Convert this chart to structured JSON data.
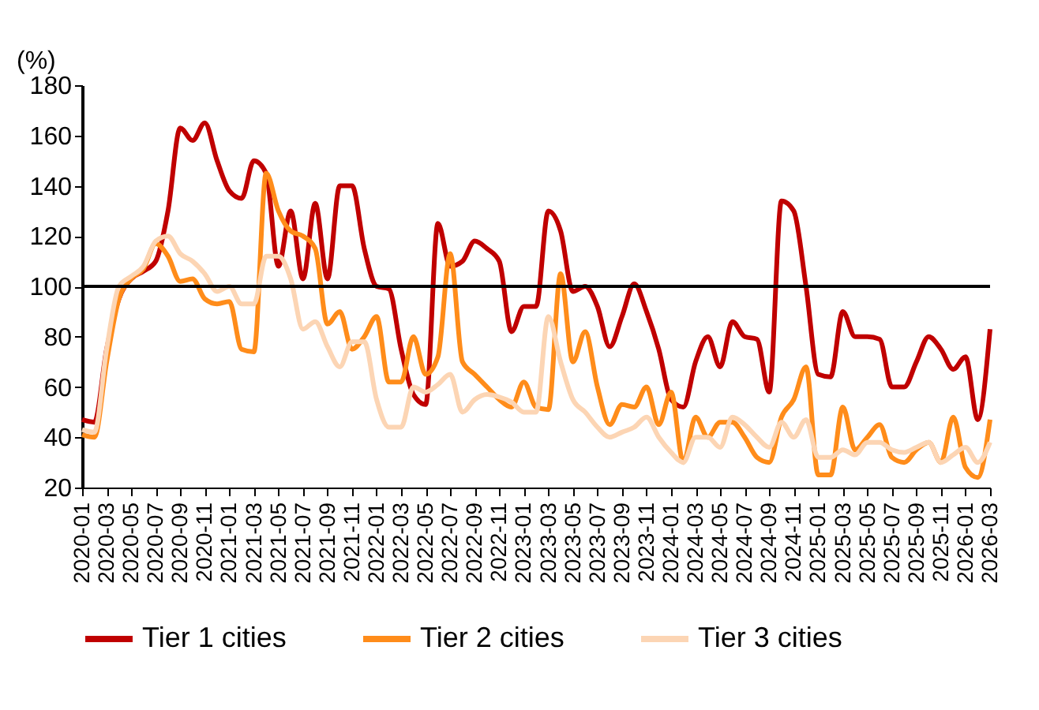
{
  "chart_data": {
    "type": "line",
    "ylabel": "(%)",
    "categories": [
      "2020-01",
      null,
      "2020-03",
      null,
      "2020-05",
      null,
      "2020-07",
      null,
      "2020-09",
      null,
      "2020-11",
      null,
      "2021-01",
      null,
      "2021-03",
      null,
      "2021-05",
      null,
      "2021-07",
      null,
      "2021-09",
      null,
      "2021-11",
      null,
      "2022-01",
      null,
      "2022-03",
      null,
      "2022-05",
      null,
      "2022-07",
      null,
      "2022-09",
      null,
      "2022-11",
      null,
      "2023-01",
      null,
      "2023-03",
      null,
      "2023-05",
      null,
      "2023-07",
      null,
      "2023-09",
      null,
      "2023-11",
      null,
      "2024-01",
      null,
      "2024-03",
      null,
      "2024-05",
      null,
      "2024-07",
      null,
      "2024-09",
      null,
      "2024-11",
      null,
      "2025-01",
      null,
      "2025-03",
      null,
      "2025-05",
      null,
      "2025-07",
      null,
      "2025-09",
      null,
      "2025-11",
      null,
      "2026-01",
      null,
      "2026-03"
    ],
    "series": [
      {
        "name": "Tier 1 cities",
        "color": "#c00000",
        "values": [
          47,
          46,
          75,
          95,
          103,
          106,
          110,
          130,
          163,
          158,
          165,
          150,
          138,
          135,
          150,
          145,
          108,
          130,
          103,
          133,
          103,
          140,
          140,
          115,
          100,
          99,
          75,
          57,
          53,
          125,
          108,
          110,
          118,
          115,
          110,
          82,
          92,
          92,
          130,
          122,
          98,
          100,
          92,
          76,
          88,
          101,
          90,
          75,
          55,
          52,
          70,
          80,
          68,
          86,
          80,
          79,
          58,
          134,
          130,
          100,
          65,
          64,
          90,
          80,
          80,
          79,
          60,
          60,
          70,
          80,
          75,
          67,
          72,
          47,
          83
        ]
      },
      {
        "name": "Tier 2 cities",
        "color": "#ff8c1a",
        "values": [
          41,
          40,
          70,
          95,
          103,
          107,
          117,
          112,
          102,
          103,
          95,
          93,
          94,
          75,
          74,
          145,
          130,
          122,
          120,
          115,
          85,
          90,
          75,
          80,
          88,
          62,
          62,
          80,
          65,
          72,
          113,
          70,
          65,
          60,
          55,
          52,
          62,
          52,
          51,
          105,
          70,
          82,
          60,
          45,
          53,
          52,
          60,
          45,
          58,
          30,
          48,
          40,
          46,
          46,
          40,
          32,
          30,
          48,
          55,
          68,
          25,
          25,
          52,
          35,
          40,
          45,
          32,
          30,
          35,
          38,
          30,
          48,
          28,
          24,
          47
        ]
      },
      {
        "name": "Tier 3 cities",
        "color": "#fcd5b4",
        "values": [
          43,
          42,
          75,
          100,
          104,
          108,
          118,
          120,
          113,
          110,
          105,
          98,
          100,
          93,
          93,
          112,
          112,
          103,
          83,
          86,
          76,
          68,
          78,
          78,
          55,
          44,
          44,
          60,
          58,
          61,
          65,
          50,
          55,
          57,
          56,
          54,
          50,
          50,
          88,
          70,
          55,
          50,
          44,
          40,
          42,
          44,
          48,
          40,
          34,
          30,
          40,
          40,
          36,
          48,
          45,
          40,
          36,
          46,
          40,
          47,
          32,
          32,
          35,
          33,
          38,
          38,
          35,
          34,
          36,
          38,
          30,
          33,
          36,
          30,
          38
        ]
      }
    ],
    "ylim": [
      20,
      180
    ],
    "yticks": [
      20,
      40,
      60,
      80,
      100,
      120,
      140,
      160,
      180
    ],
    "ref_lines": [
      {
        "axis": "y",
        "value": 100,
        "color": "#000000"
      }
    ],
    "grid": false,
    "legend": "bottom",
    "marker": "none",
    "line_style": "solid"
  }
}
